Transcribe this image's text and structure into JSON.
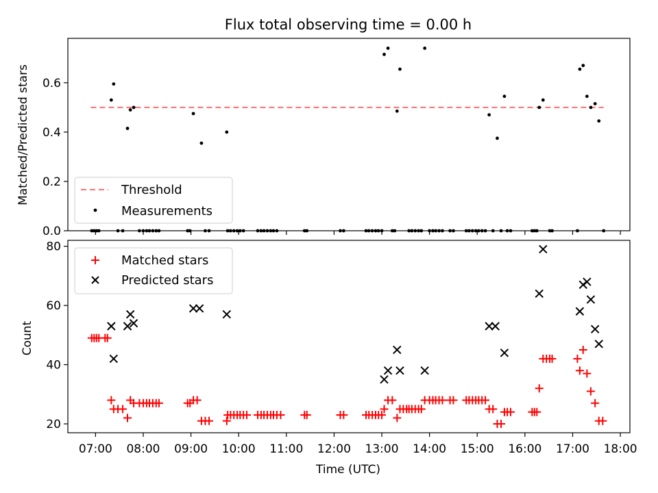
{
  "chart_data": [
    {
      "type": "scatter",
      "title": "Flux total observing time = 0.00 h",
      "ylabel": "Matched/Predicted stars",
      "xlim_hours": [
        6.42,
        18.2
      ],
      "ylim": [
        0,
        0.78
      ],
      "yticks": [
        0.0,
        0.2,
        0.4,
        0.6
      ],
      "ytick_labels": [
        "0.0",
        "0.2",
        "0.4",
        "0.6"
      ],
      "legend_location": "lower-left",
      "threshold": {
        "name": "Threshold",
        "value": 0.5,
        "x_range": [
          6.9,
          17.65
        ],
        "color": "#ff7070"
      },
      "series": [
        {
          "name": "Measurements",
          "color": "#000000",
          "points": [
            [
              7.33,
              0.53
            ],
            [
              7.38,
              0.595
            ],
            [
              7.67,
              0.415
            ],
            [
              7.73,
              0.49
            ],
            [
              7.8,
              0.5
            ],
            [
              9.05,
              0.475
            ],
            [
              9.22,
              0.355
            ],
            [
              9.75,
              0.4
            ],
            [
              13.05,
              0.715
            ],
            [
              13.13,
              0.74
            ],
            [
              13.32,
              0.485
            ],
            [
              13.38,
              0.655
            ],
            [
              13.9,
              0.74
            ],
            [
              15.25,
              0.47
            ],
            [
              15.42,
              0.375
            ],
            [
              15.57,
              0.545
            ],
            [
              16.3,
              0.5
            ],
            [
              16.38,
              0.53
            ],
            [
              17.15,
              0.655
            ],
            [
              17.22,
              0.67
            ],
            [
              17.3,
              0.545
            ],
            [
              17.38,
              0.5
            ],
            [
              17.47,
              0.515
            ],
            [
              17.55,
              0.445
            ]
          ],
          "zeros_x": [
            6.92,
            6.97,
            7.02,
            7.07,
            7.47,
            7.57,
            7.92,
            8.0,
            8.07,
            8.13,
            8.2,
            8.27,
            8.33,
            8.93,
            8.98,
            9.3,
            9.38,
            9.77,
            9.83,
            9.9,
            9.97,
            10.03,
            10.1,
            10.4,
            10.47,
            10.53,
            10.6,
            10.67,
            10.73,
            10.8,
            11.38,
            11.43,
            12.13,
            12.2,
            12.67,
            12.73,
            12.8,
            12.87,
            12.93,
            13.0,
            13.22,
            13.27,
            13.57,
            13.63,
            13.7,
            13.77,
            13.83,
            14.0,
            14.07,
            14.13,
            14.2,
            14.27,
            14.43,
            14.5,
            14.77,
            14.83,
            14.9,
            14.97,
            15.03,
            15.1,
            15.17,
            15.33,
            15.5,
            15.63,
            15.7,
            16.15,
            16.2,
            16.25,
            16.52,
            16.57,
            17.1,
            17.65
          ]
        }
      ]
    },
    {
      "type": "scatter",
      "xlabel": "Time (UTC)",
      "ylabel": "Count",
      "xlim_hours": [
        6.42,
        18.2
      ],
      "ylim": [
        17,
        82
      ],
      "yticks": [
        20,
        40,
        60,
        80
      ],
      "ytick_labels": [
        "20",
        "40",
        "60",
        "80"
      ],
      "xticks_hours": [
        7,
        8,
        9,
        10,
        11,
        12,
        13,
        14,
        15,
        16,
        17,
        18
      ],
      "xtick_labels": [
        "07:00",
        "08:00",
        "09:00",
        "10:00",
        "11:00",
        "12:00",
        "13:00",
        "14:00",
        "15:00",
        "16:00",
        "17:00",
        "18:00"
      ],
      "legend_location": "upper-left",
      "series": [
        {
          "name": "Matched stars",
          "marker": "+",
          "color": "#ff0000",
          "points": [
            [
              6.92,
              49
            ],
            [
              6.97,
              49
            ],
            [
              7.02,
              49
            ],
            [
              7.07,
              49
            ],
            [
              7.2,
              49
            ],
            [
              7.25,
              49
            ],
            [
              7.33,
              28
            ],
            [
              7.38,
              25
            ],
            [
              7.47,
              25
            ],
            [
              7.57,
              25
            ],
            [
              7.67,
              22
            ],
            [
              7.73,
              28
            ],
            [
              7.8,
              27
            ],
            [
              7.92,
              27
            ],
            [
              8.0,
              27
            ],
            [
              8.07,
              27
            ],
            [
              8.13,
              27
            ],
            [
              8.2,
              27
            ],
            [
              8.27,
              27
            ],
            [
              8.33,
              27
            ],
            [
              8.93,
              27
            ],
            [
              8.98,
              27
            ],
            [
              9.05,
              28
            ],
            [
              9.13,
              28
            ],
            [
              9.22,
              21
            ],
            [
              9.3,
              21
            ],
            [
              9.38,
              21
            ],
            [
              9.75,
              21
            ],
            [
              9.77,
              23
            ],
            [
              9.83,
              23
            ],
            [
              9.9,
              23
            ],
            [
              9.97,
              23
            ],
            [
              10.03,
              23
            ],
            [
              10.1,
              23
            ],
            [
              10.17,
              23
            ],
            [
              10.4,
              23
            ],
            [
              10.47,
              23
            ],
            [
              10.53,
              23
            ],
            [
              10.6,
              23
            ],
            [
              10.67,
              23
            ],
            [
              10.73,
              23
            ],
            [
              10.8,
              23
            ],
            [
              10.88,
              23
            ],
            [
              11.38,
              23
            ],
            [
              11.43,
              23
            ],
            [
              12.13,
              23
            ],
            [
              12.2,
              23
            ],
            [
              12.67,
              23
            ],
            [
              12.73,
              23
            ],
            [
              12.8,
              23
            ],
            [
              12.87,
              23
            ],
            [
              12.93,
              23
            ],
            [
              13.0,
              23
            ],
            [
              13.05,
              25
            ],
            [
              13.13,
              28
            ],
            [
              13.22,
              28
            ],
            [
              13.32,
              22
            ],
            [
              13.38,
              25
            ],
            [
              13.45,
              25
            ],
            [
              13.52,
              25
            ],
            [
              13.57,
              25
            ],
            [
              13.63,
              25
            ],
            [
              13.7,
              25
            ],
            [
              13.77,
              25
            ],
            [
              13.83,
              25
            ],
            [
              13.9,
              28
            ],
            [
              14.0,
              28
            ],
            [
              14.07,
              28
            ],
            [
              14.13,
              28
            ],
            [
              14.2,
              28
            ],
            [
              14.27,
              28
            ],
            [
              14.43,
              28
            ],
            [
              14.5,
              28
            ],
            [
              14.77,
              28
            ],
            [
              14.83,
              28
            ],
            [
              14.9,
              28
            ],
            [
              14.97,
              28
            ],
            [
              15.03,
              28
            ],
            [
              15.1,
              28
            ],
            [
              15.17,
              28
            ],
            [
              15.25,
              25
            ],
            [
              15.33,
              25
            ],
            [
              15.42,
              20
            ],
            [
              15.5,
              20
            ],
            [
              15.57,
              24
            ],
            [
              15.63,
              24
            ],
            [
              15.7,
              24
            ],
            [
              16.15,
              24
            ],
            [
              16.2,
              24
            ],
            [
              16.25,
              24
            ],
            [
              16.3,
              32
            ],
            [
              16.38,
              42
            ],
            [
              16.45,
              42
            ],
            [
              16.52,
              42
            ],
            [
              16.57,
              42
            ],
            [
              17.1,
              42
            ],
            [
              17.15,
              38
            ],
            [
              17.22,
              45
            ],
            [
              17.3,
              37
            ],
            [
              17.38,
              31
            ],
            [
              17.47,
              27
            ],
            [
              17.55,
              21
            ],
            [
              17.63,
              21
            ]
          ]
        },
        {
          "name": "Predicted stars",
          "marker": "x",
          "color": "#000000",
          "points": [
            [
              7.33,
              53
            ],
            [
              7.38,
              42
            ],
            [
              7.67,
              53
            ],
            [
              7.73,
              57
            ],
            [
              7.8,
              54
            ],
            [
              9.05,
              59
            ],
            [
              9.18,
              59
            ],
            [
              9.75,
              57
            ],
            [
              13.05,
              35
            ],
            [
              13.13,
              38
            ],
            [
              13.32,
              45
            ],
            [
              13.38,
              38
            ],
            [
              13.9,
              38
            ],
            [
              15.25,
              53
            ],
            [
              15.38,
              53
            ],
            [
              15.57,
              44
            ],
            [
              16.3,
              64
            ],
            [
              16.38,
              79
            ],
            [
              17.15,
              58
            ],
            [
              17.22,
              67
            ],
            [
              17.3,
              68
            ],
            [
              17.38,
              62
            ],
            [
              17.47,
              52
            ],
            [
              17.55,
              47
            ]
          ]
        }
      ]
    }
  ]
}
